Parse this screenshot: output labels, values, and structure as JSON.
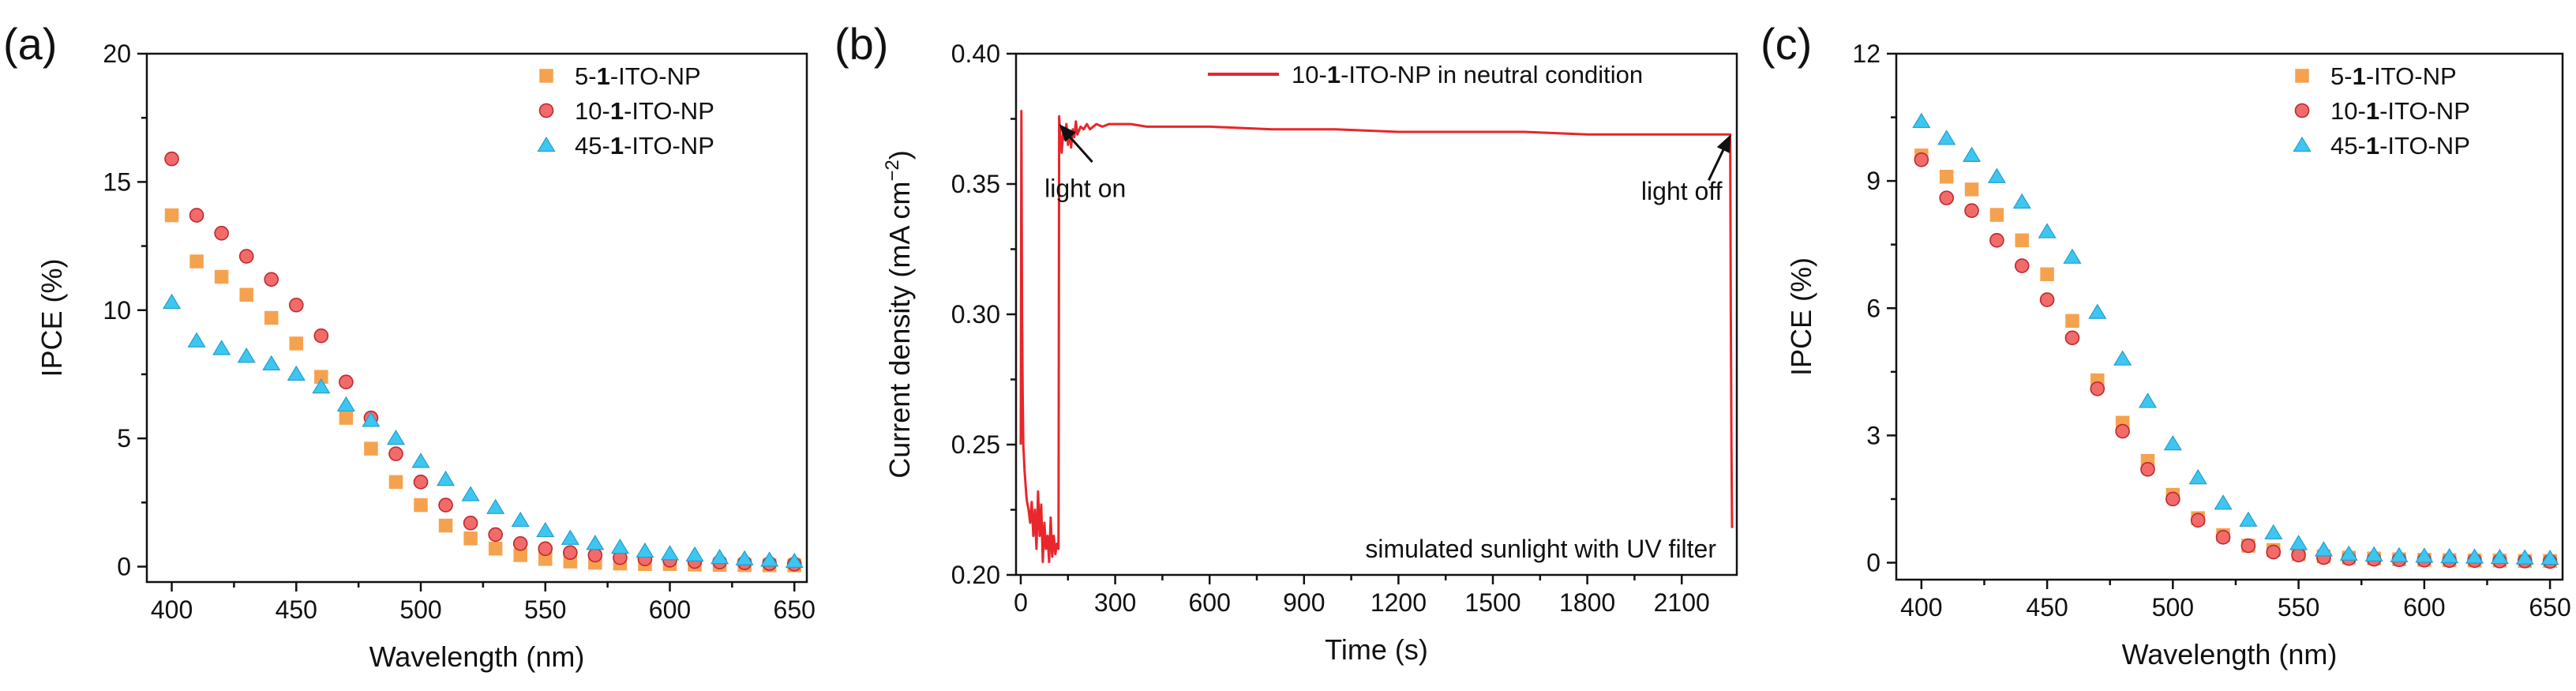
{
  "chart_data": [
    {
      "type": "scatter",
      "panel_label": "(a)",
      "xlabel": "Wavelength (nm)",
      "ylabel": "IPCE (%)",
      "xlim": [
        390,
        655
      ],
      "ylim": [
        -0.6,
        20
      ],
      "xticks": [
        400,
        450,
        500,
        550,
        600,
        650
      ],
      "yticks": [
        0,
        5,
        10,
        15,
        20
      ],
      "legend_position": "top-right",
      "x": [
        400,
        410,
        420,
        430,
        440,
        450,
        460,
        470,
        480,
        490,
        500,
        510,
        520,
        530,
        540,
        550,
        560,
        570,
        580,
        590,
        600,
        610,
        620,
        630,
        640,
        650
      ],
      "series": [
        {
          "name": "5-1-ITO-NP",
          "label_parts": [
            "5-",
            "1",
            "-ITO-NP"
          ],
          "marker": "square",
          "color": "#F5A24F",
          "values": [
            13.7,
            11.9,
            11.3,
            10.6,
            9.7,
            8.7,
            7.4,
            5.8,
            4.6,
            3.3,
            2.4,
            1.6,
            1.1,
            0.7,
            0.45,
            0.3,
            0.2,
            0.15,
            0.12,
            0.1,
            0.1,
            0.08,
            0.07,
            0.06,
            0.05,
            0.05
          ]
        },
        {
          "name": "10-1-ITO-NP",
          "label_parts": [
            "10-",
            "1",
            "-ITO-NP"
          ],
          "marker": "circle",
          "color": "#F26B6B",
          "values": [
            15.9,
            13.7,
            13.0,
            12.1,
            11.2,
            10.2,
            9.0,
            7.2,
            5.8,
            4.4,
            3.3,
            2.4,
            1.7,
            1.25,
            0.9,
            0.7,
            0.55,
            0.45,
            0.35,
            0.3,
            0.25,
            0.2,
            0.18,
            0.15,
            0.12,
            0.1
          ]
        },
        {
          "name": "45-1-ITO-NP",
          "label_parts": [
            "45-",
            "1",
            "-ITO-NP"
          ],
          "marker": "triangle",
          "color": "#3EC6F0",
          "values": [
            10.3,
            8.8,
            8.5,
            8.2,
            7.9,
            7.5,
            7.0,
            6.3,
            5.7,
            5.0,
            4.1,
            3.4,
            2.8,
            2.3,
            1.8,
            1.4,
            1.1,
            0.9,
            0.75,
            0.6,
            0.5,
            0.45,
            0.35,
            0.3,
            0.25,
            0.2
          ]
        }
      ]
    },
    {
      "type": "line",
      "panel_label": "(b)",
      "xlabel": "Time (s)",
      "ylabel_main": "Current density (mA cm",
      "ylabel_sup": "−2",
      "ylabel_close": ")",
      "xlim": [
        -15,
        2275
      ],
      "ylim": [
        0.2,
        0.4
      ],
      "xticks": [
        0,
        300,
        600,
        900,
        1200,
        1500,
        1800,
        2100
      ],
      "yticks": [
        0.2,
        0.25,
        0.3,
        0.35,
        0.4
      ],
      "ytick_labels": [
        "0.20",
        "0.25",
        "0.30",
        "0.35",
        "0.40"
      ],
      "legend_position": "top-right",
      "series": [
        {
          "name": "10-1-ITO-NP in neutral condition",
          "label_parts": [
            "10-",
            "1",
            "-ITO-NP in neutral condition"
          ],
          "color": "#E8262B",
          "x": [
            0,
            2,
            4,
            6,
            8,
            10,
            12,
            15,
            18,
            20,
            25,
            30,
            35,
            40,
            45,
            50,
            55,
            60,
            65,
            70,
            75,
            80,
            85,
            90,
            95,
            100,
            105,
            110,
            115,
            120,
            122,
            125,
            130,
            135,
            140,
            145,
            150,
            155,
            160,
            165,
            170,
            175,
            180,
            190,
            200,
            210,
            220,
            240,
            260,
            280,
            300,
            350,
            400,
            500,
            600,
            800,
            1000,
            1200,
            1400,
            1600,
            1800,
            2000,
            2200,
            2254,
            2256,
            2258,
            2260
          ],
          "y": [
            0.25,
            0.378,
            0.3,
            0.27,
            0.25,
            0.245,
            0.24,
            0.235,
            0.23,
            0.228,
            0.225,
            0.22,
            0.228,
            0.215,
            0.225,
            0.21,
            0.232,
            0.215,
            0.227,
            0.205,
            0.22,
            0.21,
            0.215,
            0.205,
            0.222,
            0.207,
            0.215,
            0.208,
            0.212,
            0.21,
            0.376,
            0.37,
            0.362,
            0.37,
            0.367,
            0.373,
            0.365,
            0.37,
            0.364,
            0.371,
            0.368,
            0.374,
            0.369,
            0.372,
            0.371,
            0.373,
            0.371,
            0.373,
            0.372,
            0.373,
            0.373,
            0.373,
            0.372,
            0.372,
            0.372,
            0.371,
            0.371,
            0.37,
            0.37,
            0.37,
            0.369,
            0.369,
            0.369,
            0.369,
            0.3,
            0.25,
            0.218
          ]
        }
      ],
      "annotations": [
        {
          "text": "light on",
          "arrow_at": [
            122,
            0.373
          ],
          "label_at": [
            205,
            0.348
          ]
        },
        {
          "text": "light off",
          "arrow_at": [
            2256,
            0.369
          ],
          "label_at": [
            2100,
            0.347
          ]
        }
      ],
      "note": "simulated sunlight with UV filter"
    },
    {
      "type": "scatter",
      "panel_label": "(c)",
      "xlabel": "Wavelength (nm)",
      "ylabel": "IPCE (%)",
      "xlim": [
        390,
        655
      ],
      "ylim": [
        -0.4,
        12
      ],
      "xticks": [
        400,
        450,
        500,
        550,
        600,
        650
      ],
      "yticks": [
        0,
        3,
        6,
        9,
        12
      ],
      "legend_position": "top-right",
      "x": [
        400,
        410,
        420,
        430,
        440,
        450,
        460,
        470,
        480,
        490,
        500,
        510,
        520,
        530,
        540,
        550,
        560,
        570,
        580,
        590,
        600,
        610,
        620,
        630,
        640,
        650
      ],
      "series": [
        {
          "name": "5-1-ITO-NP",
          "label_parts": [
            "5-",
            "1",
            "-ITO-NP"
          ],
          "marker": "square",
          "color": "#F5A24F",
          "values": [
            9.6,
            9.1,
            8.8,
            8.2,
            7.6,
            6.8,
            5.7,
            4.3,
            3.3,
            2.4,
            1.6,
            1.05,
            0.65,
            0.4,
            0.3,
            0.2,
            0.15,
            0.12,
            0.1,
            0.08,
            0.07,
            0.06,
            0.05,
            0.05,
            0.04,
            0.04
          ]
        },
        {
          "name": "10-1-ITO-NP",
          "label_parts": [
            "10-",
            "1",
            "-ITO-NP"
          ],
          "marker": "circle",
          "color": "#F26B6B",
          "values": [
            9.5,
            8.6,
            8.3,
            7.6,
            7.0,
            6.2,
            5.3,
            4.1,
            3.1,
            2.2,
            1.5,
            1.0,
            0.6,
            0.4,
            0.25,
            0.18,
            0.12,
            0.1,
            0.08,
            0.07,
            0.06,
            0.05,
            0.05,
            0.04,
            0.04,
            0.03
          ]
        },
        {
          "name": "45-1-ITO-NP",
          "label_parts": [
            "45-",
            "1",
            "-ITO-NP"
          ],
          "marker": "triangle",
          "color": "#3EC6F0",
          "values": [
            10.4,
            10.0,
            9.6,
            9.1,
            8.5,
            7.8,
            7.2,
            5.9,
            4.8,
            3.8,
            2.8,
            2.0,
            1.4,
            1.0,
            0.7,
            0.45,
            0.3,
            0.2,
            0.18,
            0.16,
            0.15,
            0.14,
            0.13,
            0.12,
            0.11,
            0.1
          ]
        }
      ]
    }
  ]
}
